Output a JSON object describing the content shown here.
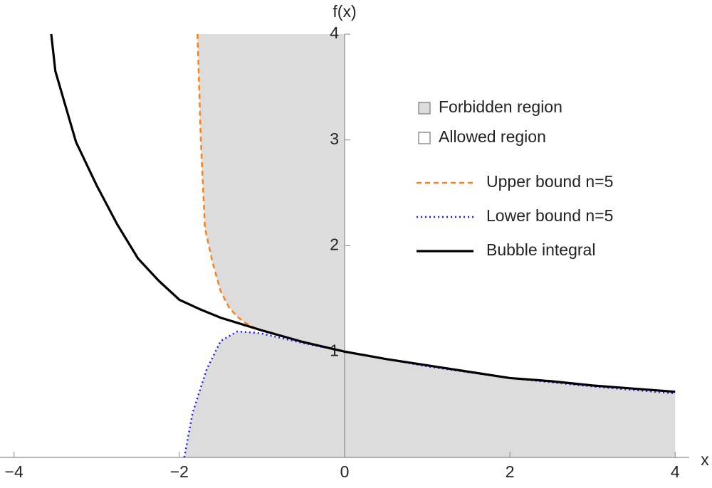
{
  "chart_data": {
    "type": "line",
    "x_label": "x",
    "y_label": "f(x)",
    "xlim": [
      -4.17,
      4.17
    ],
    "ylim": [
      0,
      4
    ],
    "xticks": [
      {
        "value": -4,
        "label": "−4"
      },
      {
        "value": -2,
        "label": "−2"
      },
      0,
      2,
      4
    ],
    "yticks": [
      1,
      2,
      3,
      4
    ],
    "regions": [
      {
        "name": "Forbidden region",
        "color": "#dcdcdc"
      },
      {
        "name": "Allowed region",
        "color": "#ffffff"
      }
    ],
    "series": [
      {
        "name": "Upper bound n=5",
        "color": "#f5841f",
        "style": "dashed",
        "x": [
          -1.78,
          -1.74,
          -1.69,
          -1.6,
          -1.5,
          -1.4,
          -1.3,
          -1.2,
          -1.1
        ],
        "values": [
          4,
          3.0,
          2.17,
          1.85,
          1.57,
          1.42,
          1.33,
          1.27,
          1.23
        ]
      },
      {
        "name": "Lower bound n=5",
        "color": "#1a1aff",
        "style": "dotted",
        "x": [
          -1.94,
          -1.84,
          -1.67,
          -1.5,
          -1.3,
          -1.1,
          -1,
          -0.5,
          0,
          1,
          2,
          3,
          4
        ],
        "values": [
          0,
          0.42,
          0.83,
          1.1,
          1.19,
          1.18,
          1.17,
          1.08,
          1.0,
          0.86,
          0.75,
          0.67,
          0.605
        ]
      },
      {
        "name": "Bubble integral",
        "color": "#000000",
        "style": "solid",
        "x": [
          -3.55,
          -3.5,
          -3.25,
          -3,
          -2.75,
          -2.5,
          -2.25,
          -2,
          -1.75,
          -1.5,
          -1.25,
          -1,
          -0.5,
          0,
          0.5,
          1,
          1.5,
          2,
          2.5,
          3,
          3.5,
          4
        ],
        "values": [
          4.0,
          3.65,
          2.98,
          2.57,
          2.2,
          1.88,
          1.67,
          1.49,
          1.4,
          1.32,
          1.26,
          1.2,
          1.09,
          1.0,
          0.93,
          0.87,
          0.81,
          0.75,
          0.72,
          0.68,
          0.65,
          0.62
        ]
      }
    ]
  }
}
